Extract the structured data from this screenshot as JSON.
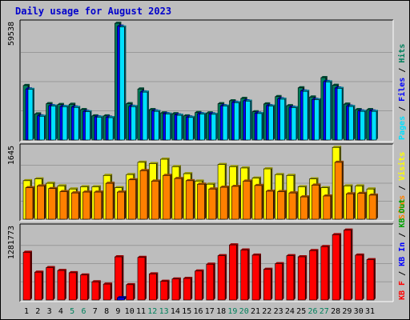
{
  "title": "Daily usage for August 2023",
  "colors": {
    "background": "#bebebe",
    "panel": "#bdbdbd",
    "grid": "#999999",
    "title": "#0000cc",
    "hits": "#00805c",
    "files": "#0000ff",
    "pages": "#00e0ff",
    "visits": "#ffff00",
    "sites": "#ff8000",
    "kbin": "#00a000",
    "kbout": "#0000ff",
    "kbf": "#ff0000",
    "label_normal": "#000000",
    "label_weekend": "#00805c"
  },
  "chart_data": {
    "type": "bar",
    "title": "Daily usage for August 2023",
    "categories": [
      "1",
      "2",
      "3",
      "4",
      "5",
      "6",
      "7",
      "8",
      "9",
      "10",
      "11",
      "12",
      "13",
      "14",
      "15",
      "16",
      "17",
      "18",
      "19",
      "20",
      "21",
      "22",
      "23",
      "24",
      "25",
      "26",
      "27",
      "28",
      "29",
      "30",
      "31"
    ],
    "weekend_days": [
      "5",
      "6",
      "12",
      "13",
      "19",
      "20",
      "26",
      "27"
    ],
    "panels": [
      {
        "name": "top",
        "ymax": 59538,
        "ymax_label": "59538",
        "legend": [
          {
            "text": "Pages",
            "color": "#00e0ff"
          },
          {
            "text": " / ",
            "color": "#000000"
          },
          {
            "text": "Files",
            "color": "#0000ff"
          },
          {
            "text": " / ",
            "color": "#000000"
          },
          {
            "text": "Hits",
            "color": "#00805c"
          }
        ],
        "series": [
          {
            "name": "Hits",
            "color": "#00805c",
            "values": [
              27800,
              13300,
              18500,
              18100,
              18200,
              15500,
              12300,
              12300,
              59500,
              18500,
              26000,
              15500,
              13800,
              13400,
              12300,
              14000,
              13800,
              18500,
              20000,
              21200,
              14400,
              18400,
              22100,
              17500,
              26600,
              21900,
              31800,
              27900,
              18300,
              15500,
              15500
            ]
          },
          {
            "name": "Files",
            "color": "#0000ff",
            "values": [
              26000,
              12300,
              17500,
              17100,
              16800,
              14600,
              11800,
              11600,
              58000,
              17200,
              24500,
              14800,
              13400,
              12800,
              11700,
              13400,
              13300,
              17500,
              19200,
              20000,
              13700,
              17500,
              21000,
              16700,
              25000,
              20700,
              29800,
              26500,
              17300,
              14800,
              14800
            ]
          },
          {
            "name": "Pages",
            "color": "#00e0ff",
            "values": [
              25800,
              12100,
              17300,
              17000,
              16600,
              14400,
              11600,
              11400,
              57600,
              17000,
              24400,
              14600,
              13200,
              12600,
              11500,
              13200,
              13100,
              17300,
              19000,
              19800,
              13500,
              17300,
              20800,
              16500,
              24800,
              20500,
              29600,
              26300,
              17100,
              14600,
              14600
            ]
          }
        ]
      },
      {
        "name": "middle",
        "ymax": 1645,
        "ymax_label": "1645",
        "legend": [
          {
            "text": "Sites",
            "color": "#ff8000"
          },
          {
            "text": " / ",
            "color": "#000000"
          },
          {
            "text": "Visits",
            "color": "#ffff00"
          }
        ],
        "series": [
          {
            "name": "Visits",
            "color": "#ffff00",
            "values": [
              880,
              920,
              820,
              760,
              690,
              740,
              740,
              1000,
              720,
              1020,
              1300,
              1270,
              1370,
              1200,
              1040,
              870,
              800,
              1250,
              1200,
              1170,
              940,
              1150,
              1020,
              1000,
              740,
              920,
              720,
              1640,
              760,
              760,
              690
            ]
          },
          {
            "name": "Sites",
            "color": "#ff8000",
            "values": [
              720,
              760,
              700,
              630,
              600,
              620,
              620,
              820,
              620,
              900,
              1110,
              870,
              1000,
              930,
              880,
              800,
              690,
              730,
              750,
              870,
              770,
              640,
              630,
              600,
              510,
              780,
              530,
              1300,
              580,
              590,
              550
            ]
          }
        ]
      },
      {
        "name": "bottom",
        "ymax": 1281773,
        "ymax_label": "1281773",
        "legend": [
          {
            "text": "KB F",
            "color": "#ff0000"
          },
          {
            "text": " / ",
            "color": "#000000"
          },
          {
            "text": "KB In",
            "color": "#0000ff"
          },
          {
            "text": " / ",
            "color": "#000000"
          },
          {
            "text": "KB Out",
            "color": "#00a000"
          }
        ],
        "series": [
          {
            "name": "KB F",
            "color": "#ff0000",
            "values": [
              840000,
              490000,
              570000,
              520000,
              480000,
              440000,
              320000,
              280000,
              760000,
              270000,
              750000,
              460000,
              330000,
              370000,
              380000,
              510000,
              630000,
              780000,
              970000,
              880000,
              790000,
              540000,
              640000,
              780000,
              760000,
              870000,
              940000,
              1150000,
              1230000,
              790000,
              710000
            ]
          },
          {
            "name": "KB In",
            "color": "#0000ff",
            "values": [
              0,
              0,
              0,
              0,
              0,
              0,
              0,
              0,
              40000,
              0,
              0,
              0,
              0,
              0,
              0,
              0,
              0,
              0,
              0,
              0,
              0,
              0,
              0,
              0,
              0,
              0,
              0,
              0,
              0,
              0,
              0
            ]
          }
        ]
      }
    ]
  }
}
